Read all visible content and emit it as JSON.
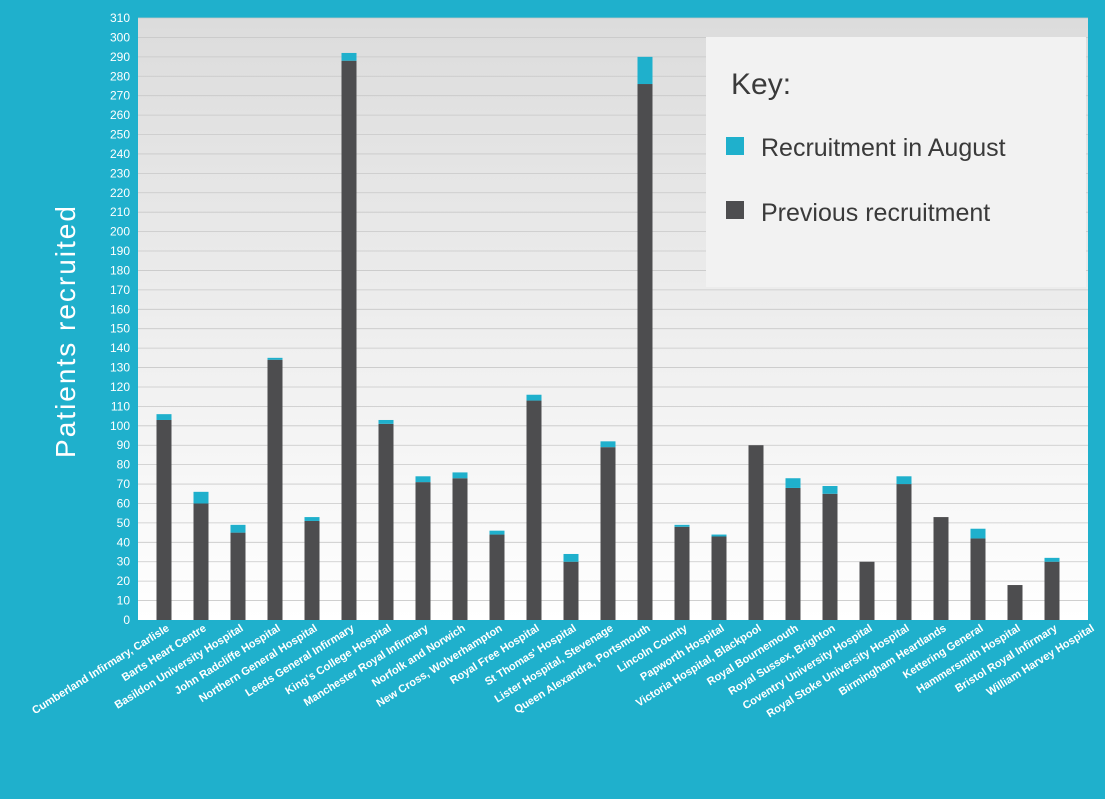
{
  "colors": {
    "background": "#1fb0cc",
    "august": "#1fb0cc",
    "previous": "#4d4d4f",
    "plot_top": "#dcdcdc",
    "plot_bottom": "#ffffff",
    "gridline": "#c8c8c8",
    "legend_bg": "#f2f2f2",
    "text_light": "#ffffff",
    "text_dark": "#3a3a3a"
  },
  "chart_data": {
    "type": "bar",
    "stacked": true,
    "ylabel": "Patients recruited",
    "ylim": [
      0,
      310
    ],
    "ytick_step": 10,
    "grid": true,
    "legend": {
      "title": "Key:",
      "placement": "top-right"
    },
    "categories": [
      "Cumberland Infirmary, Carlisle",
      "Barts Heart Centre",
      "Basildon University Hospital",
      "John Radcliffe Hospital",
      "Northern General Hospital",
      "Leeds General Infirmary",
      "King's College Hospital",
      "Manchester Royal Infirmary",
      "Norfolk and Norwich",
      "New Cross, Wolverhampton",
      "Royal Free Hospital",
      "St Thomas' Hospital",
      "Lister Hospital, Stevenage",
      "Queen Alexandra, Portsmouth",
      "Lincoln County",
      "Papworth Hospital",
      "Victoria Hospital, Blackpool",
      "Royal Bournemouth",
      "Royal Sussex, Brighton",
      "Coventry University Hospital",
      "Royal Stoke University Hospital",
      "Birmingham Heartlands",
      "Kettering General",
      "Hammersmith Hospital",
      "Bristol Royal Infirmary",
      "William Harvey Hospital"
    ],
    "series": [
      {
        "name": "Previous recruitment",
        "values": [
          103,
          60,
          45,
          134,
          51,
          288,
          101,
          71,
          73,
          44,
          113,
          30,
          89,
          276,
          48,
          43,
          90,
          68,
          65,
          30,
          70,
          53,
          42,
          18,
          30,
          0
        ]
      },
      {
        "name": "Recruitment in August",
        "values": [
          3,
          6,
          4,
          1,
          2,
          4,
          2,
          3,
          3,
          2,
          3,
          4,
          3,
          14,
          1,
          1,
          0,
          5,
          4,
          0,
          4,
          0,
          5,
          0,
          2,
          0
        ]
      }
    ]
  }
}
